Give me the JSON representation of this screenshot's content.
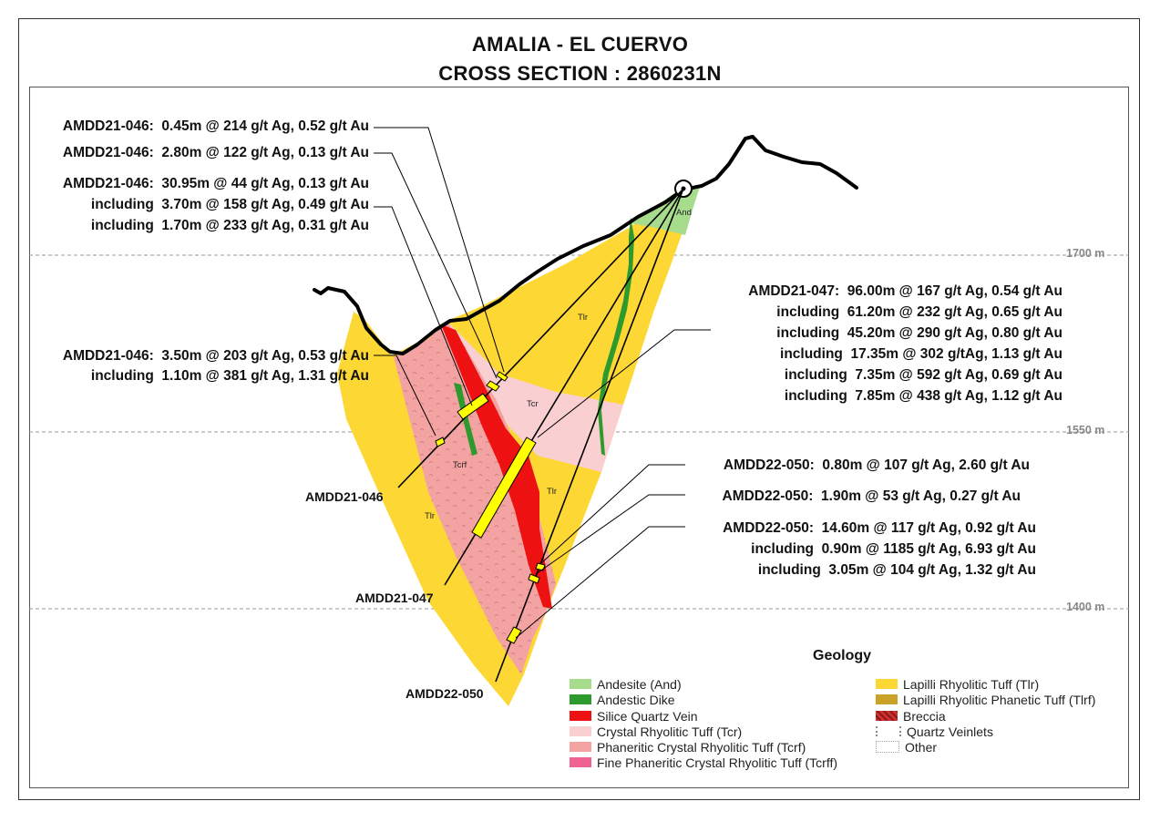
{
  "title": {
    "line1": "AMALIA - EL CUERVO",
    "line2": "CROSS SECTION : 2860231N"
  },
  "elevations": [
    "1700 m",
    "1550 m",
    "1400 m"
  ],
  "units": {
    "and": "And",
    "tlr": "Tlr",
    "tcr": "Tcr",
    "tcrf": "Tcrf"
  },
  "holes": {
    "h046": "AMDD21-046",
    "h047": "AMDD21-047",
    "h050": "AMDD22-050"
  },
  "intercepts": {
    "a1": "AMDD21-046:  0.45m @ 214 g/t Ag, 0.52 g/t Au",
    "a2": "AMDD21-046:  2.80m @ 122 g/t Ag, 0.13 g/t Au",
    "a3": "AMDD21-046:  30.95m @ 44 g/t Ag, 0.13 g/t Au\nincluding  3.70m @ 158 g/t Ag, 0.49 g/t Au\nincluding  1.70m @ 233 g/t Ag, 0.31 g/t Au",
    "a4": "AMDD21-046:  3.50m @ 203 g/t Ag, 0.53 g/t Au\nincluding  1.10m @ 381 g/t Ag, 1.31 g/t Au",
    "b1": "AMDD21-047:  96.00m @ 167 g/t Ag, 0.54 g/t Au\nincluding  61.20m @ 232 g/t Ag, 0.65 g/t Au\nincluding  45.20m @ 290 g/t Ag, 0.80 g/t Au\nincluding  17.35m @ 302 g/tAg, 1.13 g/t Au\nincluding  7.35m @ 592 g/t Ag, 0.69 g/t Au\nincluding  7.85m @ 438 g/t Ag, 1.12 g/t Au",
    "c1": "AMDD22-050:  0.80m @ 107 g/t Ag, 2.60 g/t Au",
    "c2": "AMDD22-050:  1.90m @ 53 g/t Ag, 0.27 g/t Au",
    "c3": "AMDD22-050:  14.60m @ 117 g/t Ag, 0.92 g/t Au\nincluding  0.90m @ 1185 g/t Ag, 6.93 g/t Au\nincluding  3.05m @ 104 g/t Ag, 1.32 g/t Au"
  },
  "legend": {
    "title": "Geology",
    "items": [
      {
        "label": "Andesite (And)",
        "color": "#a6dc8c"
      },
      {
        "label": "Andestic Dike",
        "color": "#2e9a2e"
      },
      {
        "label": "Silice Quartz Vein",
        "color": "#ee1111"
      },
      {
        "label": "Crystal Rhyolitic Tuff (Tcr)",
        "color": "#f9cfd2"
      },
      {
        "label": "Phaneritic Crystal Rhyolitic Tuff (Tcrf)",
        "color": "#f4a3a3"
      },
      {
        "label": "Fine Phaneritic Crystal Rhyolitic Tuff (Tcrff)",
        "color": "#f06292"
      },
      {
        "label": "Lapilli Rhyolitic Tuff (Tlr)",
        "color": "#fdd835"
      },
      {
        "label": "Lapilli Rhyolitic Phanetic Tuff (Tlrf)",
        "color": "#c9a227"
      },
      {
        "label": "Breccia",
        "color": "#d32f2f"
      },
      {
        "label": "Quartz Veinlets",
        "color": "#ffffff"
      },
      {
        "label": "Other",
        "color": "#ffffff"
      }
    ]
  }
}
